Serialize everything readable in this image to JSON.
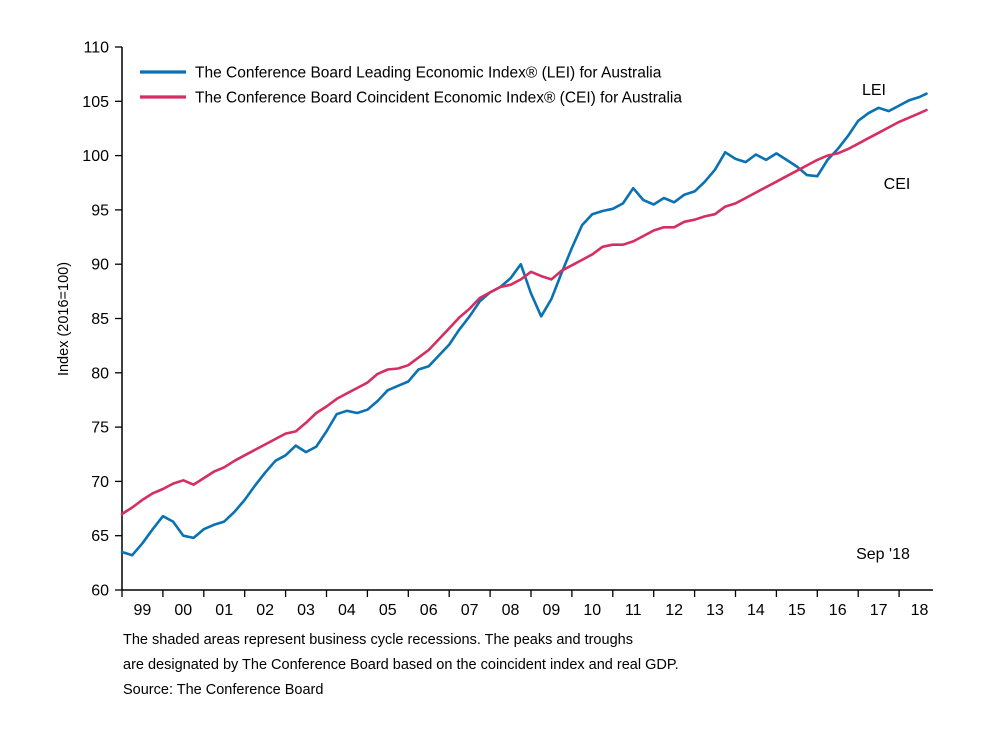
{
  "chart_data": {
    "type": "line",
    "title": "",
    "xlabel": "",
    "ylabel": "Index (2016=100)",
    "ylim": [
      60,
      110
    ],
    "y_ticks": [
      60,
      65,
      70,
      75,
      80,
      85,
      90,
      95,
      100,
      105,
      110
    ],
    "xlim": [
      1999,
      2018.83
    ],
    "x_tick_labels": [
      "99",
      "00",
      "01",
      "02",
      "03",
      "04",
      "05",
      "06",
      "07",
      "08",
      "09",
      "10",
      "11",
      "12",
      "13",
      "14",
      "15",
      "16",
      "17",
      "18"
    ],
    "grid": false,
    "legend_position": "top-left-inside",
    "x": [
      1999.0,
      1999.25,
      1999.5,
      1999.75,
      2000.0,
      2000.25,
      2000.5,
      2000.75,
      2001.0,
      2001.25,
      2001.5,
      2001.75,
      2002.0,
      2002.25,
      2002.5,
      2002.75,
      2003.0,
      2003.25,
      2003.5,
      2003.75,
      2004.0,
      2004.25,
      2004.5,
      2004.75,
      2005.0,
      2005.25,
      2005.5,
      2005.75,
      2006.0,
      2006.25,
      2006.5,
      2006.75,
      2007.0,
      2007.25,
      2007.5,
      2007.75,
      2008.0,
      2008.25,
      2008.5,
      2008.75,
      2009.0,
      2009.25,
      2009.5,
      2009.75,
      2010.0,
      2010.25,
      2010.5,
      2010.75,
      2011.0,
      2011.25,
      2011.5,
      2011.75,
      2012.0,
      2012.25,
      2012.5,
      2012.75,
      2013.0,
      2013.25,
      2013.5,
      2013.75,
      2014.0,
      2014.25,
      2014.5,
      2014.75,
      2015.0,
      2015.25,
      2015.5,
      2015.75,
      2016.0,
      2016.25,
      2016.5,
      2016.75,
      2017.0,
      2017.25,
      2017.5,
      2017.75,
      2018.0,
      2018.25,
      2018.5,
      2018.67
    ],
    "series": [
      {
        "name": "The Conference Board Leading Economic Index®  (LEI) for Australia",
        "short_name": "LEI",
        "color": "#0a71b3",
        "values": [
          63.5,
          63.2,
          64.3,
          65.6,
          66.8,
          66.3,
          65.0,
          64.8,
          65.6,
          66.0,
          66.3,
          67.2,
          68.3,
          69.6,
          70.8,
          71.9,
          72.4,
          73.3,
          72.7,
          73.2,
          74.6,
          76.2,
          76.5,
          76.3,
          76.6,
          77.4,
          78.4,
          78.8,
          79.2,
          80.3,
          80.6,
          81.6,
          82.6,
          84.0,
          85.2,
          86.6,
          87.4,
          87.9,
          88.7,
          90.0,
          87.3,
          85.2,
          86.8,
          89.2,
          91.5,
          93.6,
          94.6,
          94.9,
          95.1,
          95.6,
          97.0,
          95.9,
          95.5,
          96.1,
          95.7,
          96.4,
          96.7,
          97.6,
          98.7,
          100.3,
          99.7,
          99.4,
          100.1,
          99.6,
          100.2,
          99.6,
          99.0,
          98.2,
          98.1,
          99.6,
          100.6,
          101.8,
          103.2,
          103.9,
          104.4,
          104.1,
          104.6,
          105.1,
          105.4,
          105.7
        ]
      },
      {
        "name": "The Conference Board Coincident Economic Index®  (CEI) for Australia",
        "short_name": "CEI",
        "color": "#d42e62",
        "values": [
          67.0,
          67.6,
          68.3,
          68.9,
          69.3,
          69.8,
          70.1,
          69.7,
          70.3,
          70.9,
          71.3,
          71.9,
          72.4,
          72.9,
          73.4,
          73.9,
          74.4,
          74.6,
          75.4,
          76.3,
          76.9,
          77.6,
          78.1,
          78.6,
          79.1,
          79.9,
          80.3,
          80.4,
          80.7,
          81.4,
          82.1,
          83.1,
          84.1,
          85.1,
          85.9,
          86.9,
          87.4,
          87.9,
          88.1,
          88.6,
          89.3,
          88.9,
          88.6,
          89.4,
          89.9,
          90.4,
          90.9,
          91.6,
          91.8,
          91.8,
          92.1,
          92.6,
          93.1,
          93.4,
          93.4,
          93.9,
          94.1,
          94.4,
          94.6,
          95.3,
          95.6,
          96.1,
          96.6,
          97.1,
          97.6,
          98.1,
          98.6,
          99.1,
          99.6,
          100.0,
          100.2,
          100.6,
          101.1,
          101.6,
          102.1,
          102.6,
          103.1,
          103.5,
          103.9,
          104.2
        ]
      }
    ],
    "annotations": [
      {
        "text": "LEI"
      },
      {
        "text": "CEI"
      },
      {
        "text": "Sep '18"
      }
    ]
  },
  "footer": {
    "line1": "The shaded areas represent business cycle recessions. The peaks and troughs",
    "line2": "are designated by The Conference Board based on the coincident index and real GDP.",
    "line3": "Source: The Conference Board"
  }
}
